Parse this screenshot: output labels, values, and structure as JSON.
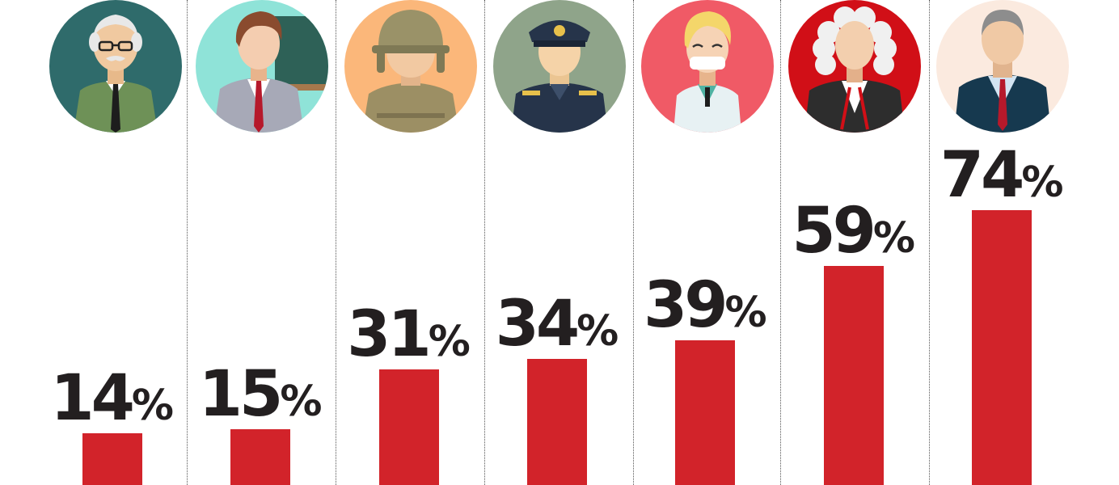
{
  "chart_data": {
    "type": "bar",
    "title": "",
    "xlabel": "",
    "ylabel": "",
    "ylim": [
      0,
      100
    ],
    "grid": false,
    "legend": "none",
    "bar_color": "#d2232a",
    "categories": [
      {
        "icon": "elderly-man-icon",
        "value": 14,
        "label": "14",
        "unit": "%"
      },
      {
        "icon": "teacher-icon",
        "value": 15,
        "label": "15",
        "unit": "%"
      },
      {
        "icon": "soldier-icon",
        "value": 31,
        "label": "31",
        "unit": "%"
      },
      {
        "icon": "police-officer-icon",
        "value": 34,
        "label": "34",
        "unit": "%"
      },
      {
        "icon": "doctor-icon",
        "value": 39,
        "label": "39",
        "unit": "%"
      },
      {
        "icon": "judge-icon",
        "value": 59,
        "label": "59",
        "unit": "%"
      },
      {
        "icon": "politician-icon",
        "value": 74,
        "label": "74",
        "unit": "%"
      }
    ]
  }
}
